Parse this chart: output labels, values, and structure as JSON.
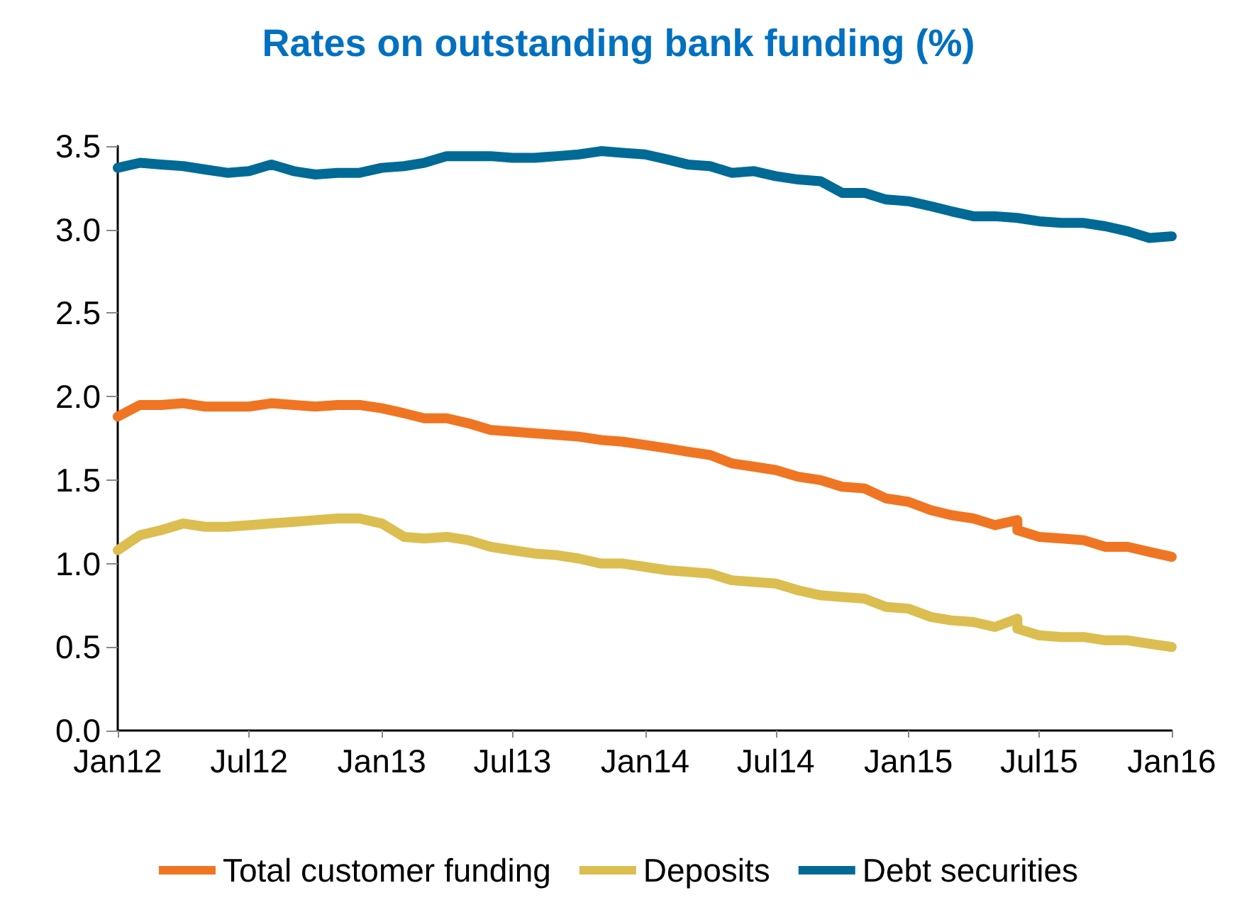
{
  "chart_data": {
    "type": "line",
    "title": "Rates on outstanding bank funding (%)",
    "xlim": [
      "2012-01",
      "2016-01"
    ],
    "xticks": [
      {
        "value": "2012-01",
        "label": "Jan12"
      },
      {
        "value": "2012-07",
        "label": "Jul12"
      },
      {
        "value": "2013-01",
        "label": "Jan13"
      },
      {
        "value": "2013-07",
        "label": "Jul13"
      },
      {
        "value": "2014-01",
        "label": "Jan14"
      },
      {
        "value": "2014-07",
        "label": "Jul14"
      },
      {
        "value": "2015-01",
        "label": "Jan15"
      },
      {
        "value": "2015-07",
        "label": "Jul15"
      },
      {
        "value": "2016-01",
        "label": "Jan16"
      }
    ],
    "ylim": [
      0,
      3.5
    ],
    "yticks": [
      {
        "value": 0,
        "label": "0.0"
      },
      0.5,
      {
        "value": 1,
        "label": "1.0"
      },
      1.5,
      {
        "value": 2,
        "label": "2.0"
      },
      2.5,
      {
        "value": 3,
        "label": "3.0"
      },
      3.5
    ],
    "grid": false,
    "legend": "bottom",
    "line_style": "solid",
    "series": [
      {
        "name": "Total customer funding",
        "color": "#f07522",
        "x": [
          "2012-01",
          "2012-02",
          "2012-03",
          "2012-04",
          "2012-05",
          "2012-06",
          "2012-07",
          "2012-08",
          "2012-09",
          "2012-10",
          "2012-11",
          "2012-12",
          "2013-01",
          "2013-02",
          "2013-03",
          "2013-04",
          "2013-05",
          "2013-06",
          "2013-07",
          "2013-08",
          "2013-09",
          "2013-10",
          "2013-11",
          "2013-12",
          "2014-01",
          "2014-02",
          "2014-03",
          "2014-04",
          "2014-05",
          "2014-06",
          "2014-07",
          "2014-08",
          "2014-09",
          "2014-10",
          "2014-11",
          "2014-12",
          "2015-01",
          "2015-02",
          "2015-03",
          "2015-04",
          "2015-05",
          "2015-06",
          "2015-06",
          "2015-07",
          "2015-08",
          "2015-09",
          "2015-10",
          "2015-11",
          "2015-12",
          "2016-01"
        ],
        "values": [
          1.88,
          1.95,
          1.95,
          1.96,
          1.94,
          1.94,
          1.94,
          1.96,
          1.95,
          1.94,
          1.95,
          1.95,
          1.93,
          1.9,
          1.87,
          1.87,
          1.84,
          1.8,
          1.79,
          1.78,
          1.77,
          1.76,
          1.74,
          1.73,
          1.71,
          1.69,
          1.67,
          1.65,
          1.6,
          1.58,
          1.56,
          1.52,
          1.5,
          1.46,
          1.45,
          1.39,
          1.37,
          1.32,
          1.29,
          1.27,
          1.23,
          1.26,
          1.2,
          1.16,
          1.15,
          1.14,
          1.1,
          1.1,
          1.07,
          1.04
        ]
      },
      {
        "name": "Deposits",
        "color": "#dcbd50",
        "x": [
          "2012-01",
          "2012-02",
          "2012-03",
          "2012-04",
          "2012-05",
          "2012-06",
          "2012-07",
          "2012-08",
          "2012-09",
          "2012-10",
          "2012-11",
          "2012-12",
          "2013-01",
          "2013-02",
          "2013-03",
          "2013-04",
          "2013-05",
          "2013-06",
          "2013-07",
          "2013-08",
          "2013-09",
          "2013-10",
          "2013-11",
          "2013-12",
          "2014-01",
          "2014-02",
          "2014-03",
          "2014-04",
          "2014-05",
          "2014-06",
          "2014-07",
          "2014-08",
          "2014-09",
          "2014-10",
          "2014-11",
          "2014-12",
          "2015-01",
          "2015-02",
          "2015-03",
          "2015-04",
          "2015-05",
          "2015-06",
          "2015-06",
          "2015-07",
          "2015-08",
          "2015-09",
          "2015-10",
          "2015-11",
          "2015-12",
          "2016-01"
        ],
        "values": [
          1.08,
          1.17,
          1.2,
          1.24,
          1.22,
          1.22,
          1.23,
          1.24,
          1.25,
          1.26,
          1.27,
          1.27,
          1.24,
          1.16,
          1.15,
          1.16,
          1.14,
          1.1,
          1.08,
          1.06,
          1.05,
          1.03,
          1,
          1,
          0.98,
          0.96,
          0.95,
          0.94,
          0.9,
          0.89,
          0.88,
          0.84,
          0.81,
          0.8,
          0.79,
          0.74,
          0.73,
          0.68,
          0.66,
          0.65,
          0.62,
          0.67,
          0.61,
          0.57,
          0.56,
          0.56,
          0.54,
          0.54,
          0.52,
          0.5
        ]
      },
      {
        "name": "Debt securities",
        "color": "#006a96",
        "x": [
          "2012-01",
          "2012-02",
          "2012-03",
          "2012-04",
          "2012-05",
          "2012-06",
          "2012-07",
          "2012-08",
          "2012-09",
          "2012-10",
          "2012-11",
          "2012-12",
          "2013-01",
          "2013-02",
          "2013-03",
          "2013-04",
          "2013-05",
          "2013-06",
          "2013-07",
          "2013-08",
          "2013-09",
          "2013-10",
          "2013-11",
          "2013-12",
          "2014-01",
          "2014-02",
          "2014-03",
          "2014-04",
          "2014-05",
          "2014-06",
          "2014-07",
          "2014-08",
          "2014-09",
          "2014-10",
          "2014-11",
          "2014-12",
          "2015-01",
          "2015-02",
          "2015-03",
          "2015-04",
          "2015-05",
          "2015-06",
          "2015-07",
          "2015-08",
          "2015-09",
          "2015-10",
          "2015-11",
          "2015-12",
          "2016-01"
        ],
        "values": [
          3.37,
          3.4,
          3.39,
          3.38,
          3.36,
          3.34,
          3.35,
          3.39,
          3.35,
          3.33,
          3.34,
          3.34,
          3.37,
          3.38,
          3.4,
          3.44,
          3.44,
          3.44,
          3.43,
          3.43,
          3.44,
          3.45,
          3.47,
          3.46,
          3.45,
          3.42,
          3.39,
          3.38,
          3.34,
          3.35,
          3.32,
          3.3,
          3.29,
          3.22,
          3.22,
          3.18,
          3.17,
          3.14,
          3.11,
          3.08,
          3.08,
          3.07,
          3.05,
          3.04,
          3.04,
          3.02,
          2.99,
          2.95,
          2.96
        ]
      }
    ]
  }
}
